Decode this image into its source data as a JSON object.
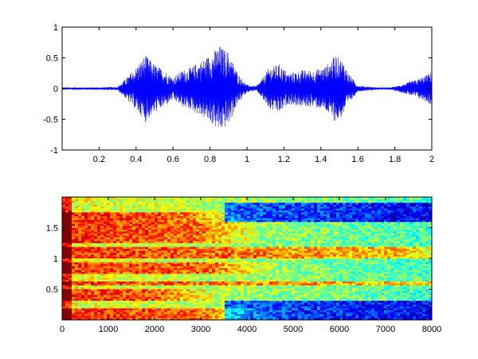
{
  "chart_data": [
    {
      "type": "line",
      "title": "",
      "xlabel": "",
      "ylabel": "",
      "xlim": [
        0,
        2
      ],
      "ylim": [
        -1,
        1
      ],
      "x_ticks": [
        0.2,
        0.4,
        0.6,
        0.8,
        1,
        1.2,
        1.4,
        1.6,
        1.8,
        2
      ],
      "x_tick_labels": [
        "0.2",
        "0.4",
        "0.6",
        "0.8",
        "1",
        "1.2",
        "1.4",
        "1.6",
        "1.8",
        "2"
      ],
      "y_ticks": [
        -1,
        -0.5,
        0,
        0.5,
        1
      ],
      "y_tick_labels": [
        "-1",
        "-0.5",
        "0",
        "0.5",
        "1"
      ],
      "grid": false,
      "legend": "none",
      "series": [
        {
          "color": "#0000ff",
          "envelope": [
            [
              0.0,
              0.02
            ],
            [
              0.1,
              0.02
            ],
            [
              0.2,
              0.02
            ],
            [
              0.3,
              0.03
            ],
            [
              0.34,
              0.15
            ],
            [
              0.4,
              0.35
            ],
            [
              0.45,
              0.55
            ],
            [
              0.5,
              0.4
            ],
            [
              0.55,
              0.3
            ],
            [
              0.6,
              0.18
            ],
            [
              0.65,
              0.3
            ],
            [
              0.7,
              0.35
            ],
            [
              0.75,
              0.45
            ],
            [
              0.8,
              0.55
            ],
            [
              0.85,
              0.7
            ],
            [
              0.9,
              0.6
            ],
            [
              0.95,
              0.25
            ],
            [
              1.0,
              0.06
            ],
            [
              1.05,
              0.04
            ],
            [
              1.08,
              0.15
            ],
            [
              1.12,
              0.35
            ],
            [
              1.18,
              0.4
            ],
            [
              1.22,
              0.25
            ],
            [
              1.3,
              0.3
            ],
            [
              1.36,
              0.3
            ],
            [
              1.42,
              0.35
            ],
            [
              1.48,
              0.55
            ],
            [
              1.52,
              0.45
            ],
            [
              1.55,
              0.25
            ],
            [
              1.6,
              0.05
            ],
            [
              1.7,
              0.02
            ],
            [
              1.78,
              0.02
            ],
            [
              1.82,
              0.05
            ],
            [
              1.87,
              0.1
            ],
            [
              1.92,
              0.15
            ],
            [
              1.97,
              0.22
            ],
            [
              2.0,
              0.28
            ]
          ]
        }
      ]
    },
    {
      "type": "heatmap",
      "title": "",
      "xlabel": "",
      "ylabel": "",
      "xlim": [
        0,
        8000
      ],
      "ylim": [
        0,
        2
      ],
      "x_ticks": [
        0,
        1000,
        2000,
        3000,
        4000,
        5000,
        6000,
        7000,
        8000
      ],
      "x_tick_labels": [
        "0",
        "1000",
        "2000",
        "3000",
        "4000",
        "5000",
        "6000",
        "7000",
        "8000"
      ],
      "y_ticks": [
        0.5,
        1,
        1.5
      ],
      "y_tick_labels": [
        "0.5",
        "1",
        "1.5"
      ],
      "colormap": "jet",
      "grid": false,
      "legend": "none",
      "bands": [
        {
          "y": [
            0.0,
            0.2
          ],
          "x_max": 3000
        },
        {
          "y": [
            0.3,
            0.5
          ],
          "x_max": 2000
        },
        {
          "y": [
            0.55,
            0.62
          ],
          "x_max": 8000
        },
        {
          "y": [
            0.75,
            0.95
          ],
          "x_max": 3200
        },
        {
          "y": [
            1.0,
            1.2
          ],
          "x_max": 7500
        },
        {
          "y": [
            1.25,
            1.4
          ],
          "x_max": 2800
        },
        {
          "y": [
            1.4,
            1.6
          ],
          "x_max": 3000
        },
        {
          "y": [
            1.6,
            1.75
          ],
          "x_max": 2500
        }
      ],
      "low_regions": [
        {
          "x": [
            3500,
            8000
          ],
          "y": [
            0.0,
            0.3
          ]
        },
        {
          "x": [
            3500,
            8000
          ],
          "y": [
            1.6,
            1.9
          ]
        }
      ]
    }
  ]
}
